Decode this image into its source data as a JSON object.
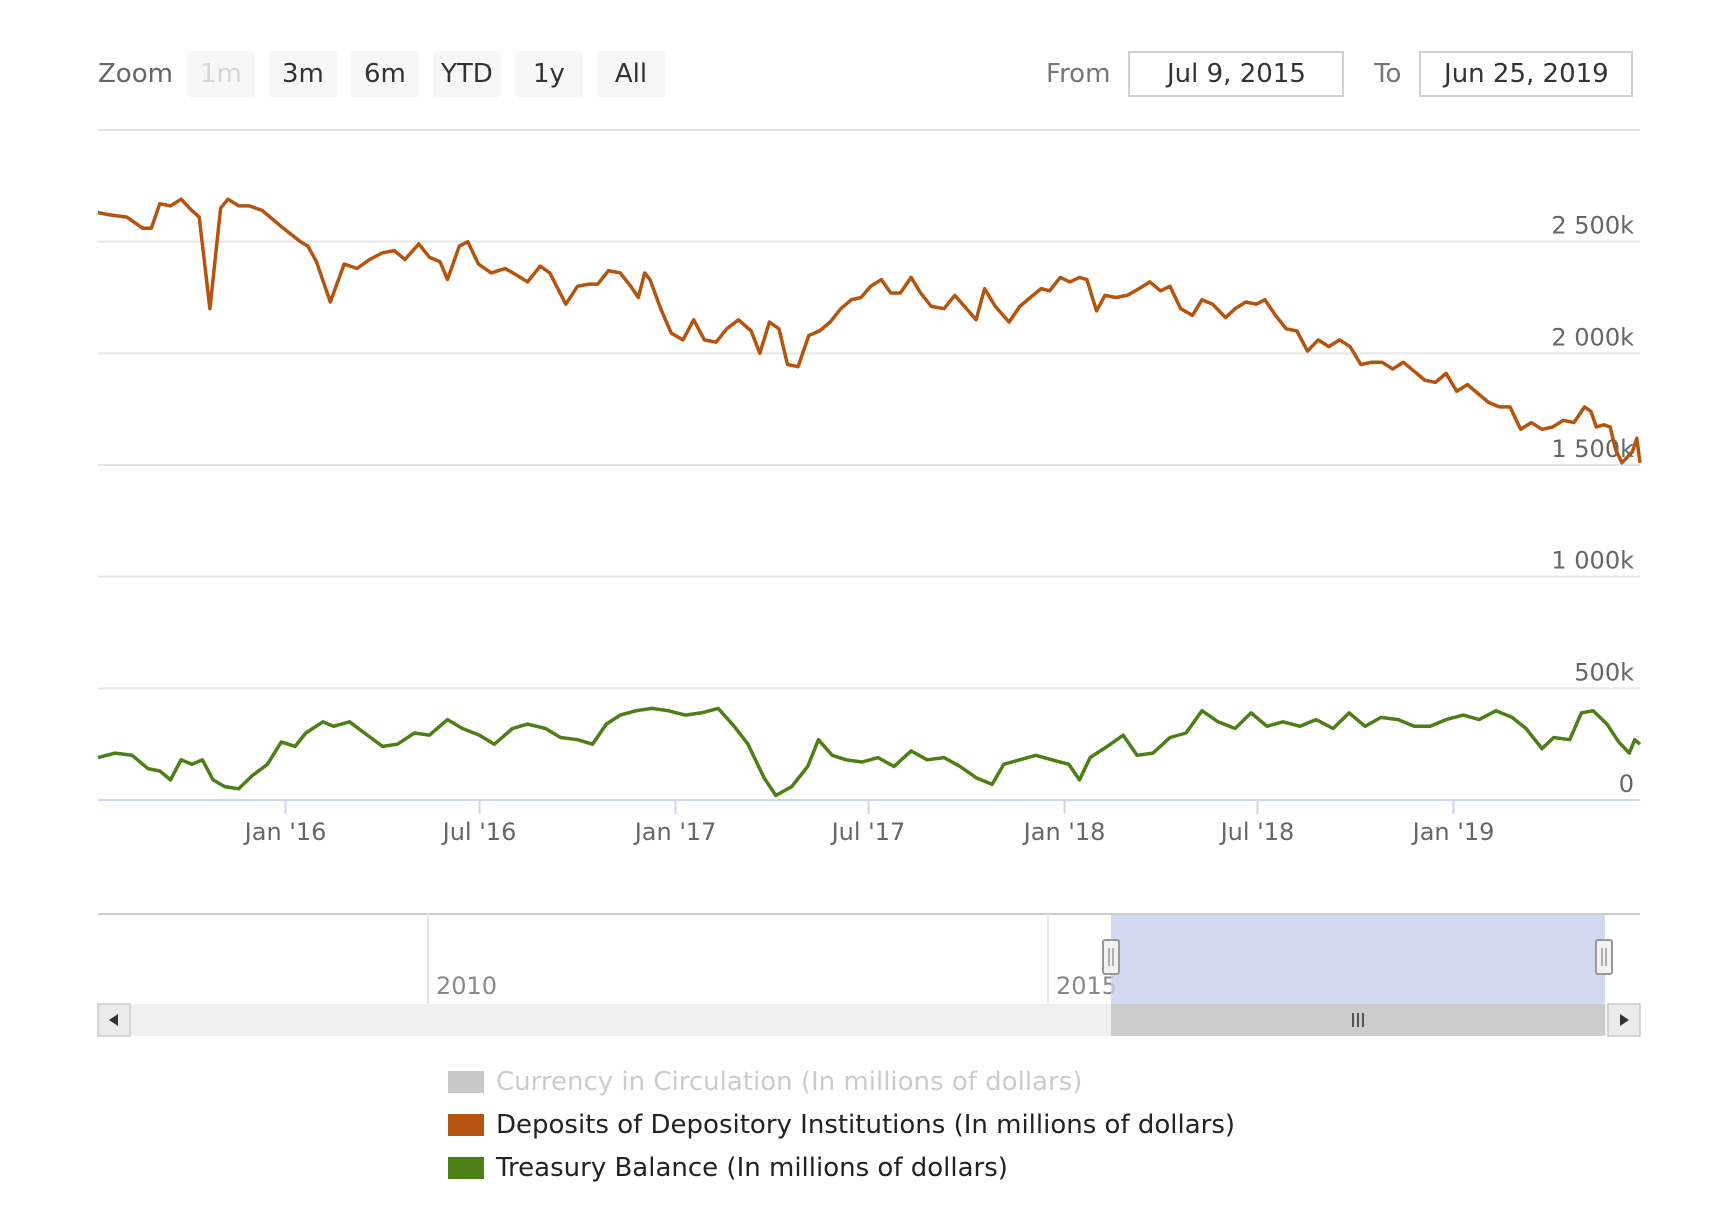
{
  "zoom": {
    "label": "Zoom",
    "buttons": [
      {
        "label": "1m",
        "disabled": true
      },
      {
        "label": "3m",
        "disabled": false
      },
      {
        "label": "6m",
        "disabled": false
      },
      {
        "label": "YTD",
        "disabled": false
      },
      {
        "label": "1y",
        "disabled": false
      },
      {
        "label": "All",
        "disabled": false
      }
    ]
  },
  "range": {
    "from_label": "From",
    "from_value": "Jul 9, 2015",
    "to_label": "To",
    "to_value": "Jun 25, 2019"
  },
  "chart_data": {
    "type": "line",
    "title": "",
    "xlabel": "",
    "ylabel": "",
    "x_range": [
      "2015-07-09",
      "2019-06-25"
    ],
    "ylim": [
      0,
      3000000
    ],
    "y_ticks": [
      0,
      500000,
      1000000,
      1500000,
      2000000,
      2500000
    ],
    "y_tick_labels": [
      "0",
      "500k",
      "1 000k",
      "1 500k",
      "2 000k",
      "2 500k"
    ],
    "x_ticks": [
      "2016-01-01",
      "2016-07-01",
      "2017-01-01",
      "2017-07-01",
      "2018-01-01",
      "2018-07-01",
      "2019-01-01"
    ],
    "x_tick_labels": [
      "Jan '16",
      "Jul '16",
      "Jan '17",
      "Jul '17",
      "Jan '18",
      "Jul '18",
      "Jan '19"
    ],
    "grid": true,
    "legend_position": "bottom",
    "series": [
      {
        "name": "Currency in Circulation (In millions of dollars)",
        "color": "#c8c8c8",
        "visible": false,
        "points": []
      },
      {
        "name": "Deposits of Depository Institutions (In millions of dollars)",
        "color": "#b5540f",
        "visible": true,
        "points": [
          [
            "2015-07-09",
            2630000
          ],
          [
            "2015-07-20",
            2620000
          ],
          [
            "2015-08-05",
            2610000
          ],
          [
            "2015-08-20",
            2560000
          ],
          [
            "2015-08-28",
            2560000
          ],
          [
            "2015-09-05",
            2670000
          ],
          [
            "2015-09-15",
            2660000
          ],
          [
            "2015-09-25",
            2690000
          ],
          [
            "2015-10-05",
            2640000
          ],
          [
            "2015-10-12",
            2610000
          ],
          [
            "2015-10-22",
            2200000
          ],
          [
            "2015-11-01",
            2650000
          ],
          [
            "2015-11-08",
            2690000
          ],
          [
            "2015-11-18",
            2660000
          ],
          [
            "2015-11-28",
            2660000
          ],
          [
            "2015-12-10",
            2640000
          ],
          [
            "2015-12-30",
            2560000
          ],
          [
            "2016-01-15",
            2500000
          ],
          [
            "2016-01-22",
            2480000
          ],
          [
            "2016-01-30",
            2410000
          ],
          [
            "2016-02-12",
            2230000
          ],
          [
            "2016-02-25",
            2400000
          ],
          [
            "2016-03-08",
            2380000
          ],
          [
            "2016-03-20",
            2420000
          ],
          [
            "2016-04-01",
            2450000
          ],
          [
            "2016-04-12",
            2460000
          ],
          [
            "2016-04-22",
            2420000
          ],
          [
            "2016-05-05",
            2490000
          ],
          [
            "2016-05-15",
            2430000
          ],
          [
            "2016-05-25",
            2410000
          ],
          [
            "2016-06-01",
            2330000
          ],
          [
            "2016-06-12",
            2480000
          ],
          [
            "2016-06-20",
            2500000
          ],
          [
            "2016-06-30",
            2400000
          ],
          [
            "2016-07-12",
            2360000
          ],
          [
            "2016-07-25",
            2380000
          ],
          [
            "2016-08-05",
            2350000
          ],
          [
            "2016-08-15",
            2320000
          ],
          [
            "2016-08-27",
            2390000
          ],
          [
            "2016-09-05",
            2360000
          ],
          [
            "2016-09-20",
            2220000
          ],
          [
            "2016-10-01",
            2300000
          ],
          [
            "2016-10-12",
            2310000
          ],
          [
            "2016-10-20",
            2310000
          ],
          [
            "2016-10-30",
            2370000
          ],
          [
            "2016-11-10",
            2360000
          ],
          [
            "2016-11-20",
            2300000
          ],
          [
            "2016-11-27",
            2250000
          ],
          [
            "2016-12-03",
            2360000
          ],
          [
            "2016-12-08",
            2330000
          ],
          [
            "2016-12-18",
            2200000
          ],
          [
            "2016-12-28",
            2090000
          ],
          [
            "2017-01-08",
            2060000
          ],
          [
            "2017-01-18",
            2150000
          ],
          [
            "2017-01-28",
            2060000
          ],
          [
            "2017-02-08",
            2050000
          ],
          [
            "2017-02-18",
            2110000
          ],
          [
            "2017-03-01",
            2150000
          ],
          [
            "2017-03-13",
            2100000
          ],
          [
            "2017-03-21",
            2000000
          ],
          [
            "2017-03-30",
            2140000
          ],
          [
            "2017-04-08",
            2110000
          ],
          [
            "2017-04-16",
            1950000
          ],
          [
            "2017-04-26",
            1940000
          ],
          [
            "2017-05-06",
            2080000
          ],
          [
            "2017-05-16",
            2100000
          ],
          [
            "2017-05-26",
            2140000
          ],
          [
            "2017-06-05",
            2200000
          ],
          [
            "2017-06-15",
            2240000
          ],
          [
            "2017-06-24",
            2250000
          ],
          [
            "2017-07-03",
            2300000
          ],
          [
            "2017-07-13",
            2330000
          ],
          [
            "2017-07-22",
            2270000
          ],
          [
            "2017-07-31",
            2270000
          ],
          [
            "2017-08-10",
            2340000
          ],
          [
            "2017-08-19",
            2270000
          ],
          [
            "2017-08-29",
            2210000
          ],
          [
            "2017-09-10",
            2200000
          ],
          [
            "2017-09-20",
            2260000
          ],
          [
            "2017-10-01",
            2200000
          ],
          [
            "2017-10-10",
            2150000
          ],
          [
            "2017-10-18",
            2290000
          ],
          [
            "2017-10-28",
            2210000
          ],
          [
            "2017-11-10",
            2140000
          ],
          [
            "2017-11-20",
            2210000
          ],
          [
            "2017-11-30",
            2250000
          ],
          [
            "2017-12-10",
            2290000
          ],
          [
            "2017-12-18",
            2280000
          ],
          [
            "2017-12-28",
            2340000
          ],
          [
            "2018-01-06",
            2320000
          ],
          [
            "2018-01-15",
            2340000
          ],
          [
            "2018-01-22",
            2330000
          ],
          [
            "2018-01-31",
            2190000
          ],
          [
            "2018-02-08",
            2260000
          ],
          [
            "2018-02-18",
            2250000
          ],
          [
            "2018-03-01",
            2260000
          ],
          [
            "2018-03-12",
            2290000
          ],
          [
            "2018-03-22",
            2320000
          ],
          [
            "2018-04-01",
            2280000
          ],
          [
            "2018-04-10",
            2300000
          ],
          [
            "2018-04-20",
            2200000
          ],
          [
            "2018-05-01",
            2170000
          ],
          [
            "2018-05-10",
            2240000
          ],
          [
            "2018-05-20",
            2220000
          ],
          [
            "2018-06-01",
            2160000
          ],
          [
            "2018-06-10",
            2200000
          ],
          [
            "2018-06-20",
            2230000
          ],
          [
            "2018-06-30",
            2220000
          ],
          [
            "2018-07-08",
            2240000
          ],
          [
            "2018-07-18",
            2170000
          ],
          [
            "2018-07-28",
            2110000
          ],
          [
            "2018-08-07",
            2100000
          ],
          [
            "2018-08-17",
            2010000
          ],
          [
            "2018-08-27",
            2060000
          ],
          [
            "2018-09-06",
            2030000
          ],
          [
            "2018-09-16",
            2060000
          ],
          [
            "2018-09-26",
            2030000
          ],
          [
            "2018-10-06",
            1950000
          ],
          [
            "2018-10-16",
            1960000
          ],
          [
            "2018-10-26",
            1960000
          ],
          [
            "2018-11-05",
            1930000
          ],
          [
            "2018-11-15",
            1960000
          ],
          [
            "2018-11-25",
            1920000
          ],
          [
            "2018-12-05",
            1880000
          ],
          [
            "2018-12-15",
            1870000
          ],
          [
            "2018-12-25",
            1910000
          ],
          [
            "2019-01-04",
            1830000
          ],
          [
            "2019-01-14",
            1860000
          ],
          [
            "2019-01-24",
            1820000
          ],
          [
            "2019-02-03",
            1780000
          ],
          [
            "2019-02-13",
            1760000
          ],
          [
            "2019-02-23",
            1760000
          ],
          [
            "2019-03-05",
            1660000
          ],
          [
            "2019-03-15",
            1690000
          ],
          [
            "2019-03-25",
            1660000
          ],
          [
            "2019-04-04",
            1670000
          ],
          [
            "2019-04-14",
            1700000
          ],
          [
            "2019-04-24",
            1690000
          ],
          [
            "2019-05-04",
            1760000
          ],
          [
            "2019-05-10",
            1740000
          ],
          [
            "2019-05-15",
            1670000
          ],
          [
            "2019-05-22",
            1680000
          ],
          [
            "2019-05-28",
            1670000
          ],
          [
            "2019-06-02",
            1570000
          ],
          [
            "2019-06-08",
            1510000
          ],
          [
            "2019-06-14",
            1540000
          ],
          [
            "2019-06-18",
            1560000
          ],
          [
            "2019-06-22",
            1620000
          ],
          [
            "2019-06-25",
            1510000
          ]
        ]
      },
      {
        "name": "Treasury Balance (In millions of dollars)",
        "color": "#4d7f17",
        "visible": true,
        "points": [
          [
            "2015-07-09",
            190000
          ],
          [
            "2015-07-25",
            210000
          ],
          [
            "2015-08-10",
            200000
          ],
          [
            "2015-08-25",
            140000
          ],
          [
            "2015-09-05",
            130000
          ],
          [
            "2015-09-15",
            90000
          ],
          [
            "2015-09-25",
            180000
          ],
          [
            "2015-10-05",
            160000
          ],
          [
            "2015-10-15",
            180000
          ],
          [
            "2015-10-25",
            90000
          ],
          [
            "2015-11-05",
            60000
          ],
          [
            "2015-11-18",
            50000
          ],
          [
            "2015-12-01",
            110000
          ],
          [
            "2015-12-15",
            160000
          ],
          [
            "2015-12-28",
            260000
          ],
          [
            "2016-01-10",
            240000
          ],
          [
            "2016-01-20",
            300000
          ],
          [
            "2016-02-05",
            350000
          ],
          [
            "2016-02-15",
            330000
          ],
          [
            "2016-03-01",
            350000
          ],
          [
            "2016-03-15",
            300000
          ],
          [
            "2016-04-01",
            240000
          ],
          [
            "2016-04-15",
            250000
          ],
          [
            "2016-05-01",
            300000
          ],
          [
            "2016-05-15",
            290000
          ],
          [
            "2016-06-01",
            360000
          ],
          [
            "2016-06-15",
            320000
          ],
          [
            "2016-07-01",
            290000
          ],
          [
            "2016-07-15",
            250000
          ],
          [
            "2016-08-01",
            320000
          ],
          [
            "2016-08-15",
            340000
          ],
          [
            "2016-09-01",
            320000
          ],
          [
            "2016-09-15",
            280000
          ],
          [
            "2016-10-01",
            270000
          ],
          [
            "2016-10-15",
            250000
          ],
          [
            "2016-10-28",
            340000
          ],
          [
            "2016-11-10",
            380000
          ],
          [
            "2016-11-25",
            400000
          ],
          [
            "2016-12-10",
            410000
          ],
          [
            "2016-12-25",
            400000
          ],
          [
            "2017-01-10",
            380000
          ],
          [
            "2017-01-25",
            390000
          ],
          [
            "2017-02-10",
            410000
          ],
          [
            "2017-02-25",
            330000
          ],
          [
            "2017-03-10",
            250000
          ],
          [
            "2017-03-25",
            100000
          ],
          [
            "2017-04-05",
            20000
          ],
          [
            "2017-04-20",
            60000
          ],
          [
            "2017-05-05",
            150000
          ],
          [
            "2017-05-15",
            270000
          ],
          [
            "2017-05-28",
            200000
          ],
          [
            "2017-06-10",
            180000
          ],
          [
            "2017-06-25",
            170000
          ],
          [
            "2017-07-10",
            190000
          ],
          [
            "2017-07-25",
            150000
          ],
          [
            "2017-08-10",
            220000
          ],
          [
            "2017-08-25",
            180000
          ],
          [
            "2017-09-10",
            190000
          ],
          [
            "2017-09-25",
            150000
          ],
          [
            "2017-10-10",
            100000
          ],
          [
            "2017-10-25",
            70000
          ],
          [
            "2017-11-05",
            160000
          ],
          [
            "2017-11-20",
            180000
          ],
          [
            "2017-12-05",
            200000
          ],
          [
            "2017-12-20",
            180000
          ],
          [
            "2018-01-05",
            160000
          ],
          [
            "2018-01-15",
            90000
          ],
          [
            "2018-01-25",
            190000
          ],
          [
            "2018-02-10",
            240000
          ],
          [
            "2018-02-25",
            290000
          ],
          [
            "2018-03-10",
            200000
          ],
          [
            "2018-03-25",
            210000
          ],
          [
            "2018-04-10",
            280000
          ],
          [
            "2018-04-25",
            300000
          ],
          [
            "2018-05-10",
            400000
          ],
          [
            "2018-05-25",
            350000
          ],
          [
            "2018-06-10",
            320000
          ],
          [
            "2018-06-25",
            390000
          ],
          [
            "2018-07-10",
            330000
          ],
          [
            "2018-07-25",
            350000
          ],
          [
            "2018-08-10",
            330000
          ],
          [
            "2018-08-25",
            360000
          ],
          [
            "2018-09-10",
            320000
          ],
          [
            "2018-09-25",
            390000
          ],
          [
            "2018-10-10",
            330000
          ],
          [
            "2018-10-25",
            370000
          ],
          [
            "2018-11-10",
            360000
          ],
          [
            "2018-11-25",
            330000
          ],
          [
            "2018-12-10",
            330000
          ],
          [
            "2018-12-25",
            360000
          ],
          [
            "2019-01-10",
            380000
          ],
          [
            "2019-01-25",
            360000
          ],
          [
            "2019-02-10",
            400000
          ],
          [
            "2019-02-25",
            370000
          ],
          [
            "2019-03-10",
            320000
          ],
          [
            "2019-03-25",
            230000
          ],
          [
            "2019-04-05",
            280000
          ],
          [
            "2019-04-20",
            270000
          ],
          [
            "2019-05-01",
            390000
          ],
          [
            "2019-05-12",
            400000
          ],
          [
            "2019-05-25",
            340000
          ],
          [
            "2019-06-05",
            260000
          ],
          [
            "2019-06-15",
            210000
          ],
          [
            "2019-06-20",
            270000
          ],
          [
            "2019-06-25",
            250000
          ]
        ]
      }
    ],
    "navigator": {
      "labels": [
        "2010",
        "2015"
      ],
      "selected_range": [
        "2015-07-09",
        "2019-06-25"
      ]
    }
  }
}
